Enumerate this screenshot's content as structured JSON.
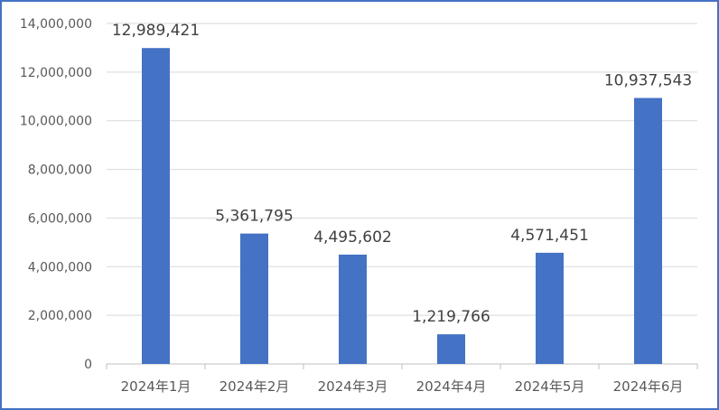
{
  "chart_data": {
    "type": "bar",
    "title": "",
    "xlabel": "",
    "ylabel": "",
    "categories": [
      "2024年1月",
      "2024年2月",
      "2024年3月",
      "2024年4月",
      "2024年5月",
      "2024年6月"
    ],
    "values": [
      12989421,
      5361795,
      4495602,
      1219766,
      4571451,
      10937543
    ],
    "data_labels": [
      "12,989,421",
      "5,361,795",
      "4,495,602",
      "1,219,766",
      "4,571,451",
      "10,937,543"
    ],
    "ylim": [
      0,
      14000000
    ],
    "yticks": [
      0,
      2000000,
      4000000,
      6000000,
      8000000,
      10000000,
      12000000,
      14000000
    ],
    "ytick_labels": [
      "0",
      "2,000,000",
      "4,000,000",
      "6,000,000",
      "8,000,000",
      "10,000,000",
      "12,000,000",
      "14,000,000"
    ],
    "grid": true,
    "legend": "none",
    "bar_color": "#4472C4",
    "border_color": "#4472C4"
  }
}
